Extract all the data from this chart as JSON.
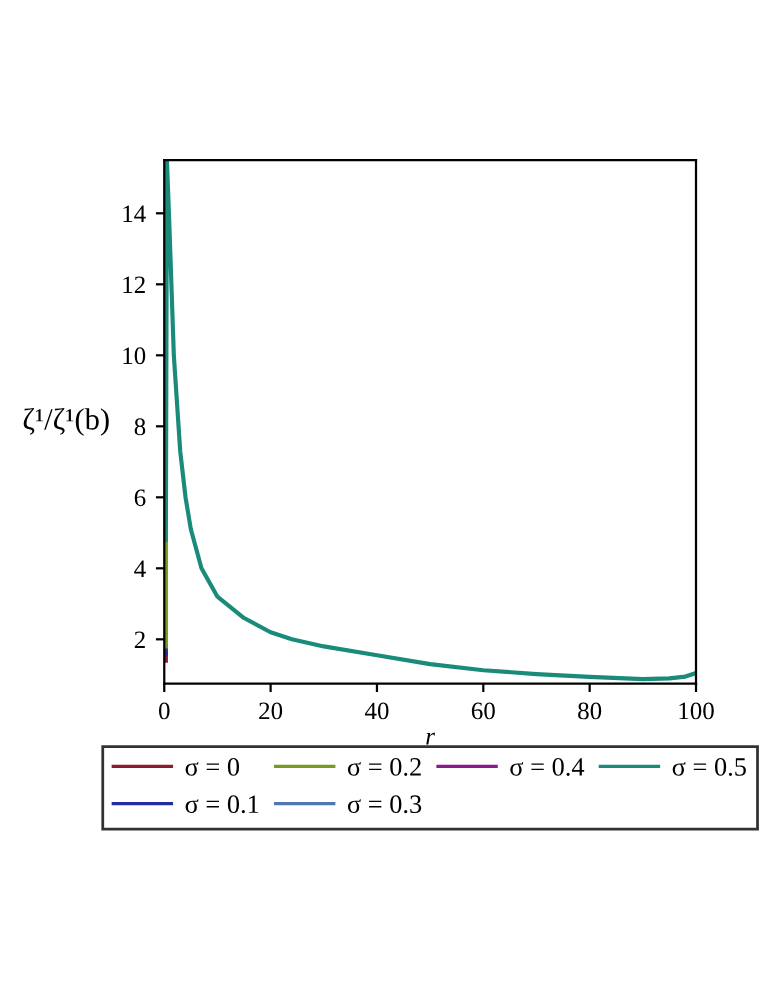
{
  "chart_data": {
    "type": "line",
    "xlabel": "r",
    "ylabel": "ζ¹/ζ¹(b)",
    "xlim": [
      0,
      100
    ],
    "ylim": [
      0.75,
      15.5
    ],
    "xticks": [
      0,
      20,
      40,
      60,
      80,
      100
    ],
    "yticks": [
      2,
      4,
      6,
      8,
      10,
      12,
      14
    ],
    "grid": false,
    "legend": "bottom",
    "marker": "none",
    "line_style": "solid",
    "x": [
      0.3,
      0.3,
      0.5,
      1,
      1.8,
      3,
      4,
      5,
      7,
      10,
      15,
      20,
      24,
      30,
      40,
      50,
      60,
      70,
      80,
      90,
      95,
      98,
      100
    ],
    "series": [
      {
        "name": "σ = 0",
        "color": "#8b1c2c",
        "values": [
          1.4,
          1.6,
          null,
          null,
          null,
          null,
          null,
          null,
          null,
          null,
          null,
          null,
          null,
          null,
          null,
          null,
          null,
          null,
          null,
          null,
          null,
          null,
          null
        ]
      },
      {
        "name": "σ = 0.1",
        "color": "#1f2f9f",
        "values": [
          1.6,
          1.8,
          null,
          null,
          null,
          null,
          null,
          null,
          null,
          null,
          null,
          null,
          null,
          null,
          null,
          null,
          null,
          null,
          null,
          null,
          null,
          null,
          null
        ]
      },
      {
        "name": "σ = 0.2",
        "color": "#789a1f",
        "values": [
          1.8,
          4.8,
          null,
          null,
          null,
          null,
          null,
          null,
          null,
          null,
          null,
          null,
          null,
          null,
          null,
          null,
          null,
          null,
          null,
          null,
          null,
          null,
          null
        ]
      },
      {
        "name": "σ = 0.3",
        "color": "#5078b0",
        "values": [
          null,
          null,
          null,
          null,
          null,
          null,
          null,
          null,
          null,
          null,
          null,
          null,
          null,
          null,
          null,
          null,
          null,
          null,
          null,
          null,
          null,
          null,
          null
        ]
      },
      {
        "name": "σ = 0.4",
        "color": "#8b1a8b",
        "values": [
          null,
          null,
          null,
          null,
          null,
          null,
          null,
          null,
          null,
          null,
          null,
          null,
          null,
          null,
          null,
          null,
          null,
          null,
          null,
          null,
          null,
          null,
          null
        ]
      },
      {
        "name": "σ = 0.5",
        "color": "#1a8b7b",
        "values": [
          null,
          4.8,
          15.5,
          13.5,
          10,
          7.3,
          6,
          5.1,
          4,
          3.2,
          2.6,
          2.2,
          2,
          1.8,
          1.55,
          1.3,
          1.13,
          1.02,
          0.94,
          0.88,
          0.9,
          0.95,
          1.05
        ]
      }
    ]
  }
}
